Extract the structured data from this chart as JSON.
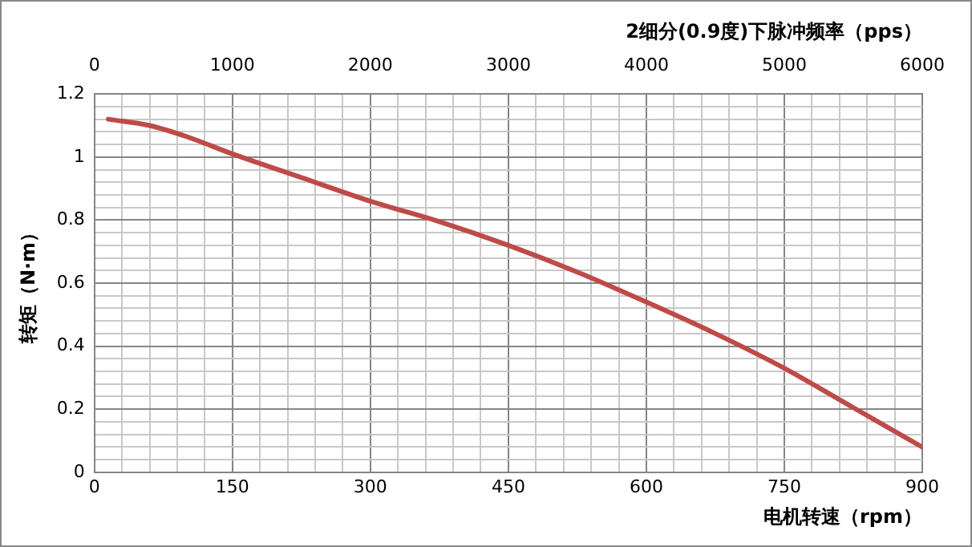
{
  "chart_data": {
    "type": "line",
    "xlabel": "电机转速（rpm）",
    "ylabel": "转矩（N·m）",
    "x2label": "2细分(0.9度)下脉冲频率（pps）",
    "xlim": [
      0,
      900
    ],
    "xticks": [
      0,
      {
        "value": 30,
        "label": null
      },
      {
        "value": 60,
        "label": null
      },
      {
        "value": 90,
        "label": null
      },
      {
        "value": 120,
        "label": null
      },
      150,
      {
        "value": 180,
        "label": null
      },
      {
        "value": 210,
        "label": null
      },
      {
        "value": 240,
        "label": null
      },
      {
        "value": 270,
        "label": null
      },
      300,
      {
        "value": 330,
        "label": null
      },
      {
        "value": 360,
        "label": null
      },
      {
        "value": 390,
        "label": null
      },
      {
        "value": 420,
        "label": null
      },
      450,
      {
        "value": 480,
        "label": null
      },
      {
        "value": 510,
        "label": null
      },
      {
        "value": 540,
        "label": null
      },
      {
        "value": 570,
        "label": null
      },
      600,
      {
        "value": 630,
        "label": null
      },
      {
        "value": 660,
        "label": null
      },
      {
        "value": 690,
        "label": null
      },
      {
        "value": 720,
        "label": null
      },
      750,
      {
        "value": 780,
        "label": null
      },
      {
        "value": 810,
        "label": null
      },
      {
        "value": 840,
        "label": null
      },
      {
        "value": 870,
        "label": null
      },
      900
    ],
    "x2lim": [
      0,
      6000
    ],
    "x2ticks": [
      0,
      1000,
      2000,
      3000,
      4000,
      5000,
      6000
    ],
    "ylim": [
      0,
      1.2
    ],
    "yticks": [
      0,
      {
        "value": 0.04,
        "label": null
      },
      {
        "value": 0.08,
        "label": null
      },
      {
        "value": 0.12,
        "label": null
      },
      {
        "value": 0.16,
        "label": null
      },
      0.2,
      {
        "value": 0.24,
        "label": null
      },
      {
        "value": 0.28,
        "label": null
      },
      {
        "value": 0.32,
        "label": null
      },
      {
        "value": 0.36,
        "label": null
      },
      0.4,
      {
        "value": 0.44,
        "label": null
      },
      {
        "value": 0.48,
        "label": null
      },
      {
        "value": 0.52,
        "label": null
      },
      {
        "value": 0.56,
        "label": null
      },
      0.6,
      {
        "value": 0.64,
        "label": null
      },
      {
        "value": 0.68,
        "label": null
      },
      {
        "value": 0.72,
        "label": null
      },
      {
        "value": 0.76,
        "label": null
      },
      0.8,
      {
        "value": 0.84,
        "label": null
      },
      {
        "value": 0.88,
        "label": null
      },
      {
        "value": 0.92,
        "label": null
      },
      {
        "value": 0.96,
        "label": null
      },
      1,
      {
        "value": 1.04,
        "label": null
      },
      {
        "value": 1.08,
        "label": null
      },
      {
        "value": 1.12,
        "label": null
      },
      {
        "value": 1.16,
        "label": null
      },
      1.2
    ],
    "grid": true,
    "legend": false,
    "marker": "none",
    "line_style": "solid",
    "series": [
      {
        "color": "#be4b48",
        "x": [
          15,
          60,
          100,
          150,
          225,
          300,
          375,
          450,
          525,
          600,
          675,
          750,
          825,
          900
        ],
        "values": [
          1.12,
          1.1,
          1.065,
          1.01,
          0.935,
          0.86,
          0.795,
          0.72,
          0.635,
          0.54,
          0.44,
          0.33,
          0.205,
          0.08
        ]
      }
    ]
  }
}
